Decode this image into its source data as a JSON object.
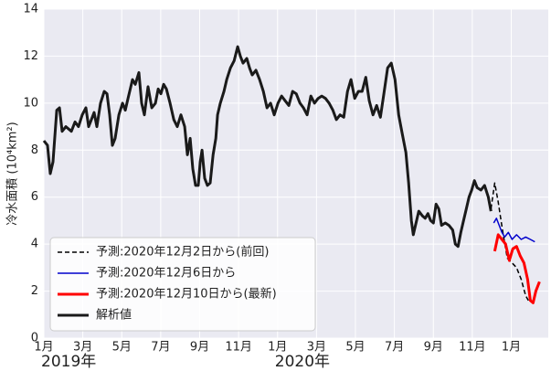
{
  "chart_data": {
    "type": "line",
    "y_label": "冷水面積 (10⁴km²)",
    "xlim": [
      0,
      25.9
    ],
    "ylim": [
      0,
      14
    ],
    "yticks": [
      0,
      2,
      4,
      6,
      8,
      10,
      12,
      14
    ],
    "xticks": [
      {
        "value": 0,
        "label": "1月"
      },
      {
        "value": 2,
        "label": "3月"
      },
      {
        "value": 4,
        "label": "5月"
      },
      {
        "value": 6,
        "label": "7月"
      },
      {
        "value": 8,
        "label": "9月"
      },
      {
        "value": 10,
        "label": "11月"
      },
      {
        "value": 12,
        "label": "1月"
      },
      {
        "value": 14,
        "label": "3月"
      },
      {
        "value": 16,
        "label": "5月"
      },
      {
        "value": 18,
        "label": "7月"
      },
      {
        "value": 20,
        "label": "9月"
      },
      {
        "value": 22,
        "label": "11月"
      },
      {
        "value": 24,
        "label": "1月"
      }
    ],
    "year_labels": [
      {
        "value": 0,
        "label": "2019年"
      },
      {
        "value": 12,
        "label": "2020年"
      }
    ],
    "grid": true,
    "legend": "lower left",
    "series": [
      {
        "name": "予測:2020年12月2日から(前回)",
        "color": "#000000",
        "linestyle": "dashed",
        "linewidth": 1.5,
        "x": [
          22.96,
          23.15,
          23.33,
          23.57,
          23.8,
          24.04,
          24.27,
          24.51,
          24.74,
          24.88
        ],
        "values": [
          5.5,
          6.6,
          5.8,
          4.5,
          3.4,
          3.2,
          3.0,
          2.5,
          1.8,
          1.6
        ]
      },
      {
        "name": "予測:2020年12月6日から",
        "color": "#0000cc",
        "linestyle": "solid",
        "linewidth": 1.5,
        "x": [
          23.1,
          23.24,
          23.38,
          23.52,
          23.66,
          23.85,
          24.04,
          24.27,
          24.51,
          24.74,
          24.98,
          25.21
        ],
        "values": [
          4.9,
          5.1,
          4.8,
          4.5,
          4.3,
          4.5,
          4.2,
          4.4,
          4.2,
          4.3,
          4.2,
          4.1
        ]
      },
      {
        "name": "予測:2020年12月10日から(最新)",
        "color": "#ff0000",
        "linestyle": "solid",
        "linewidth": 3,
        "x": [
          23.15,
          23.33,
          23.52,
          23.71,
          23.9,
          24.08,
          24.27,
          24.46,
          24.65,
          24.84,
          24.98,
          25.12,
          25.26,
          25.45
        ],
        "values": [
          3.7,
          4.4,
          4.2,
          4.0,
          3.3,
          3.8,
          3.9,
          3.5,
          3.2,
          2.5,
          1.6,
          1.5,
          2.0,
          2.4
        ]
      },
      {
        "name": "解析値",
        "color": "#1a1a1a",
        "linestyle": "solid",
        "linewidth": 3,
        "x": [
          0,
          0.19,
          0.33,
          0.47,
          0.66,
          0.8,
          0.94,
          1.13,
          1.41,
          1.6,
          1.78,
          1.97,
          2.16,
          2.3,
          2.44,
          2.58,
          2.72,
          2.91,
          3.1,
          3.24,
          3.38,
          3.52,
          3.66,
          3.85,
          4.04,
          4.18,
          4.32,
          4.55,
          4.69,
          4.88,
          5.02,
          5.16,
          5.35,
          5.54,
          5.73,
          5.87,
          6.01,
          6.15,
          6.29,
          6.48,
          6.67,
          6.85,
          7.04,
          7.23,
          7.37,
          7.51,
          7.65,
          7.79,
          7.93,
          8.03,
          8.12,
          8.26,
          8.4,
          8.54,
          8.69,
          8.83,
          8.92,
          9.06,
          9.25,
          9.39,
          9.58,
          9.77,
          9.95,
          10.09,
          10.23,
          10.42,
          10.56,
          10.7,
          10.89,
          11.08,
          11.27,
          11.46,
          11.64,
          11.83,
          12.02,
          12.21,
          12.39,
          12.58,
          12.77,
          12.96,
          13.15,
          13.33,
          13.52,
          13.71,
          13.9,
          14.08,
          14.27,
          14.46,
          14.65,
          14.84,
          15.02,
          15.21,
          15.4,
          15.59,
          15.77,
          15.96,
          16.15,
          16.34,
          16.53,
          16.71,
          16.9,
          17.09,
          17.28,
          17.46,
          17.65,
          17.84,
          18.03,
          18.22,
          18.4,
          18.59,
          18.73,
          18.87,
          18.97,
          19.11,
          19.25,
          19.44,
          19.58,
          19.72,
          19.86,
          20,
          20.14,
          20.28,
          20.42,
          20.61,
          20.8,
          20.99,
          21.13,
          21.27,
          21.41,
          21.55,
          21.69,
          21.83,
          21.97,
          22.11,
          22.25,
          22.44,
          22.63,
          22.82,
          22.96
        ],
        "values": [
          8.4,
          8.2,
          7.0,
          7.5,
          9.7,
          9.8,
          8.8,
          9.0,
          8.8,
          9.2,
          9.0,
          9.5,
          9.8,
          9.0,
          9.3,
          9.6,
          9.0,
          10.0,
          10.5,
          10.4,
          9.5,
          8.2,
          8.5,
          9.5,
          10.0,
          9.7,
          10.2,
          11.0,
          10.8,
          11.3,
          10.0,
          9.5,
          10.7,
          9.8,
          10.0,
          10.6,
          10.4,
          10.8,
          10.6,
          10.0,
          9.3,
          9.0,
          9.5,
          9.0,
          7.8,
          8.5,
          7.2,
          6.5,
          6.5,
          7.5,
          8.0,
          6.8,
          6.5,
          6.6,
          7.8,
          8.5,
          9.5,
          10.0,
          10.5,
          11.0,
          11.5,
          11.8,
          12.4,
          12.0,
          11.7,
          11.9,
          11.5,
          11.2,
          11.4,
          11.0,
          10.5,
          9.8,
          10.0,
          9.5,
          10.0,
          10.3,
          10.1,
          9.9,
          10.5,
          10.4,
          10.0,
          9.8,
          9.5,
          10.3,
          10.0,
          10.2,
          10.3,
          10.2,
          10.0,
          9.7,
          9.3,
          9.5,
          9.4,
          10.5,
          11.0,
          10.2,
          10.5,
          10.5,
          11.1,
          10.1,
          9.5,
          9.9,
          9.4,
          10.4,
          11.5,
          11.7,
          11.0,
          9.5,
          8.7,
          7.9,
          6.6,
          5.0,
          4.4,
          4.9,
          5.4,
          5.2,
          5.1,
          5.3,
          5.0,
          4.9,
          5.7,
          5.5,
          4.8,
          4.9,
          4.8,
          4.6,
          4.0,
          3.9,
          4.5,
          5.0,
          5.5,
          6.0,
          6.3,
          6.7,
          6.4,
          6.3,
          6.5,
          6.0,
          5.4
        ]
      }
    ]
  }
}
